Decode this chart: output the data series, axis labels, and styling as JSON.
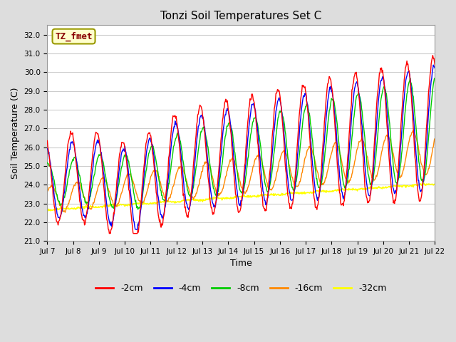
{
  "title": "Tonzi Soil Temperatures Set C",
  "xlabel": "Time",
  "ylabel": "Soil Temperature (C)",
  "ylim": [
    21.0,
    32.5
  ],
  "yticks": [
    21.0,
    22.0,
    23.0,
    24.0,
    25.0,
    26.0,
    27.0,
    28.0,
    29.0,
    30.0,
    31.0,
    32.0
  ],
  "xtick_labels": [
    "Jul 7",
    "Jul 8",
    "Jul 9",
    "Jul 10",
    "Jul 11",
    "Jul 12",
    "Jul 13",
    "Jul 14",
    "Jul 15",
    "Jul 16",
    "Jul 17",
    "Jul 18",
    "Jul 19",
    "Jul 20",
    "Jul 21",
    "Jul 22"
  ],
  "colors": {
    "-2cm": "#ff0000",
    "-4cm": "#0000ff",
    "-8cm": "#00cc00",
    "-16cm": "#ff8800",
    "-32cm": "#ffff00"
  },
  "legend_label": "TZ_fmet",
  "legend_box_facecolor": "#ffffcc",
  "legend_box_edgecolor": "#999900",
  "plot_bg_color": "#ffffff",
  "fig_bg_color": "#dddddd",
  "grid_color": "#cccccc",
  "grid_linewidth": 0.8
}
